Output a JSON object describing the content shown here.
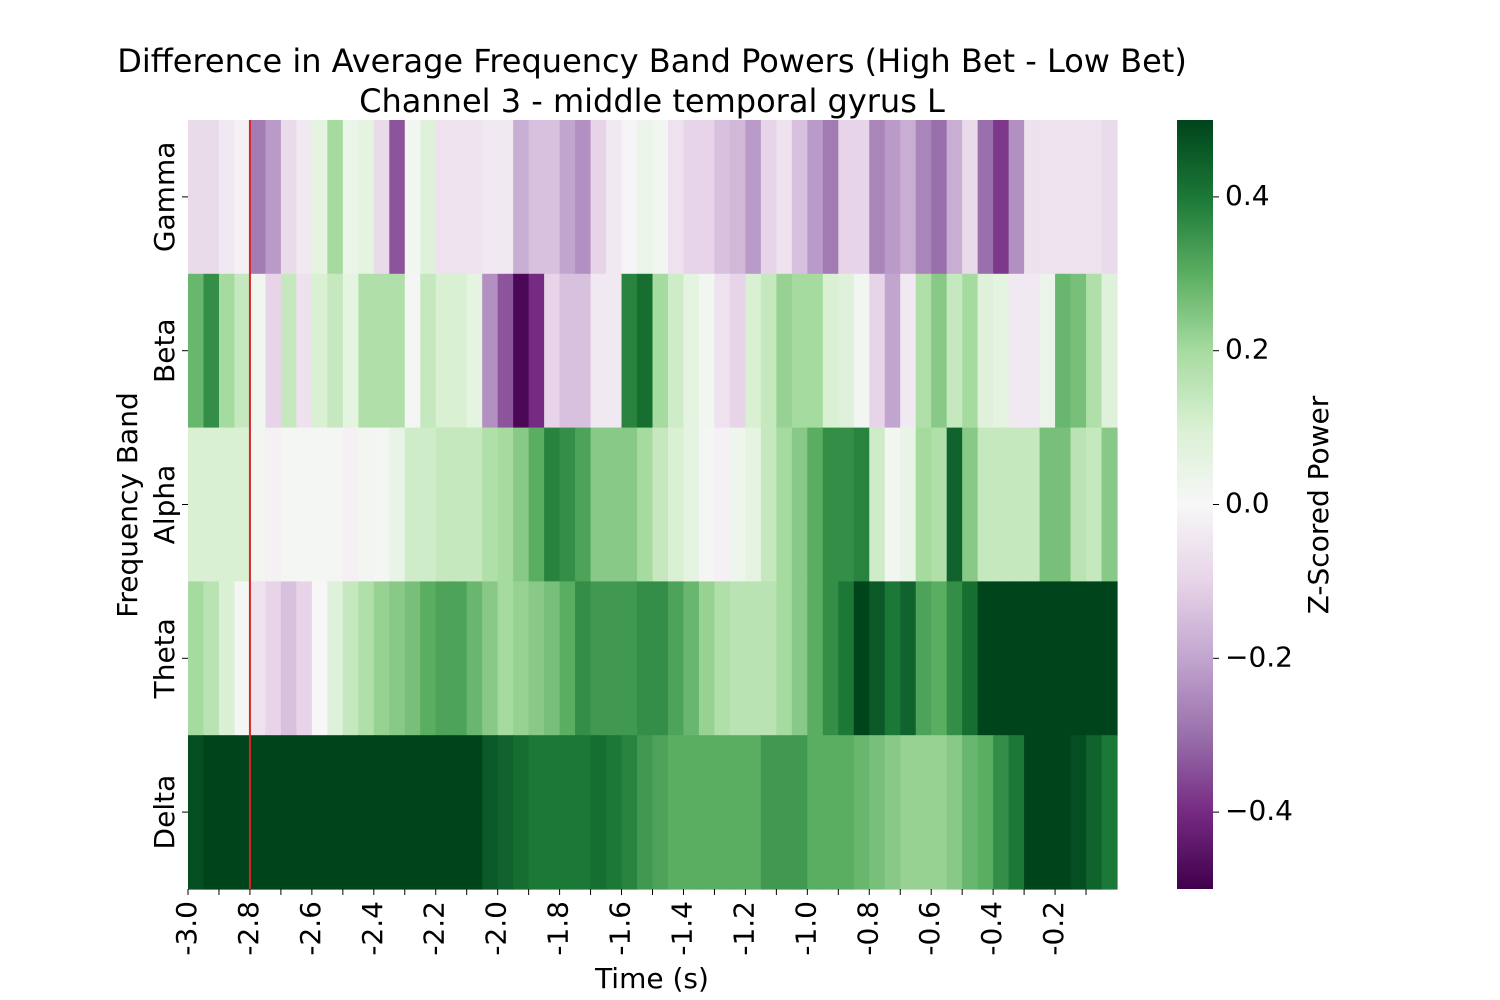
{
  "chart_data": {
    "type": "heatmap",
    "title": "Difference in Average Frequency Band Powers (High Bet - Low Bet)",
    "subtitle": "Channel 3 - middle temporal gyrus L",
    "xlabel": "Time (s)",
    "ylabel": "Frequency Band",
    "rows": [
      "Gamma",
      "Beta",
      "Alpha",
      "Theta",
      "Delta"
    ],
    "x_tick_labels": [
      "-3.0",
      "-2.8",
      "-2.6",
      "-2.4",
      "-2.2",
      "-2.0",
      "-1.8",
      "-1.6",
      "-1.4",
      "-1.2",
      "-1.0",
      "-0.8",
      "-0.6",
      "-0.4",
      "-0.2"
    ],
    "x_tick_values": [
      -3.0,
      -2.8,
      -2.6,
      -2.4,
      -2.2,
      -2.0,
      -1.8,
      -1.6,
      -1.4,
      -1.2,
      -1.0,
      -0.8,
      -0.6,
      -0.4,
      -0.2
    ],
    "x_range": [
      -3.0,
      0.0
    ],
    "bin_width_s": 0.05,
    "marker_time": -2.8,
    "marker_color": "#d62728",
    "colormap": "PRGn",
    "colorbar": {
      "label": "Z-Scored Power",
      "range": [
        -0.5,
        0.5
      ],
      "ticks": [
        -0.4,
        -0.2,
        0.0,
        0.2,
        0.4
      ],
      "tick_labels": [
        "−0.4",
        "−0.2",
        "0.0",
        "0.2",
        "0.4"
      ]
    },
    "values": [
      [
        -0.08,
        -0.08,
        -0.04,
        -0.02,
        -0.28,
        -0.22,
        -0.08,
        -0.04,
        0.06,
        0.2,
        0.04,
        0.06,
        -0.08,
        -0.34,
        0.02,
        0.08,
        -0.06,
        -0.06,
        -0.06,
        -0.04,
        -0.04,
        -0.18,
        -0.14,
        -0.14,
        -0.2,
        -0.24,
        -0.1,
        -0.04,
        -0.01,
        0.04,
        0.02,
        -0.06,
        -0.1,
        -0.1,
        -0.14,
        -0.16,
        -0.22,
        -0.1,
        -0.06,
        -0.14,
        -0.22,
        -0.28,
        -0.1,
        -0.1,
        -0.26,
        -0.22,
        -0.18,
        -0.26,
        -0.3,
        -0.18,
        -0.08,
        -0.3,
        -0.38,
        -0.24,
        -0.06,
        -0.06,
        -0.06,
        -0.06,
        -0.06,
        -0.08
      ],
      [
        0.28,
        0.36,
        0.2,
        0.14,
        0.02,
        -0.1,
        0.14,
        -0.06,
        0.1,
        0.14,
        0.06,
        0.18,
        0.18,
        0.18,
        0.01,
        0.14,
        0.1,
        0.1,
        0.06,
        -0.24,
        -0.34,
        -0.48,
        -0.4,
        -0.1,
        -0.14,
        -0.14,
        -0.04,
        -0.04,
        0.38,
        0.42,
        0.2,
        0.12,
        0.06,
        0.02,
        -0.06,
        -0.1,
        0.1,
        0.14,
        0.22,
        0.2,
        0.2,
        0.1,
        0.08,
        0.02,
        -0.1,
        -0.2,
        -0.04,
        0.18,
        0.24,
        0.14,
        0.2,
        0.08,
        0.06,
        -0.04,
        -0.04,
        0.04,
        0.28,
        0.26,
        0.18,
        0.08
      ],
      [
        0.1,
        0.1,
        0.1,
        0.1,
        0.02,
        -0.02,
        0.01,
        0.01,
        0.01,
        0.01,
        -0.02,
        0.02,
        0.01,
        0.05,
        0.12,
        0.12,
        0.14,
        0.14,
        0.14,
        0.18,
        0.2,
        0.24,
        0.3,
        0.38,
        0.36,
        0.32,
        0.24,
        0.24,
        0.24,
        0.2,
        0.14,
        0.1,
        0.06,
        0.01,
        -0.02,
        0.03,
        0.06,
        0.14,
        0.2,
        0.24,
        0.3,
        0.36,
        0.36,
        0.38,
        0.12,
        0.02,
        0.05,
        0.2,
        0.18,
        0.44,
        0.24,
        0.14,
        0.14,
        0.14,
        0.14,
        0.26,
        0.26,
        0.16,
        0.14,
        0.24
      ],
      [
        0.2,
        0.16,
        0.1,
        0.01,
        -0.06,
        -0.1,
        -0.14,
        -0.1,
        0.0,
        0.08,
        0.14,
        0.18,
        0.22,
        0.24,
        0.26,
        0.3,
        0.32,
        0.32,
        0.28,
        0.24,
        0.2,
        0.22,
        0.24,
        0.26,
        0.3,
        0.36,
        0.34,
        0.34,
        0.34,
        0.36,
        0.36,
        0.32,
        0.28,
        0.22,
        0.18,
        0.16,
        0.16,
        0.16,
        0.2,
        0.24,
        0.3,
        0.36,
        0.4,
        0.5,
        0.46,
        0.4,
        0.44,
        0.32,
        0.3,
        0.36,
        0.42,
        0.5,
        0.5,
        0.5,
        0.5,
        0.5,
        0.5,
        0.5,
        0.5,
        0.5
      ],
      [
        0.48,
        0.5,
        0.5,
        0.5,
        0.5,
        0.5,
        0.5,
        0.5,
        0.5,
        0.5,
        0.5,
        0.5,
        0.5,
        0.5,
        0.5,
        0.5,
        0.5,
        0.5,
        0.5,
        0.46,
        0.44,
        0.42,
        0.4,
        0.4,
        0.4,
        0.4,
        0.42,
        0.4,
        0.38,
        0.34,
        0.32,
        0.3,
        0.3,
        0.3,
        0.3,
        0.3,
        0.3,
        0.34,
        0.34,
        0.34,
        0.3,
        0.3,
        0.3,
        0.28,
        0.26,
        0.24,
        0.22,
        0.22,
        0.22,
        0.24,
        0.28,
        0.3,
        0.36,
        0.4,
        0.5,
        0.5,
        0.5,
        0.48,
        0.44,
        0.4
      ]
    ]
  }
}
